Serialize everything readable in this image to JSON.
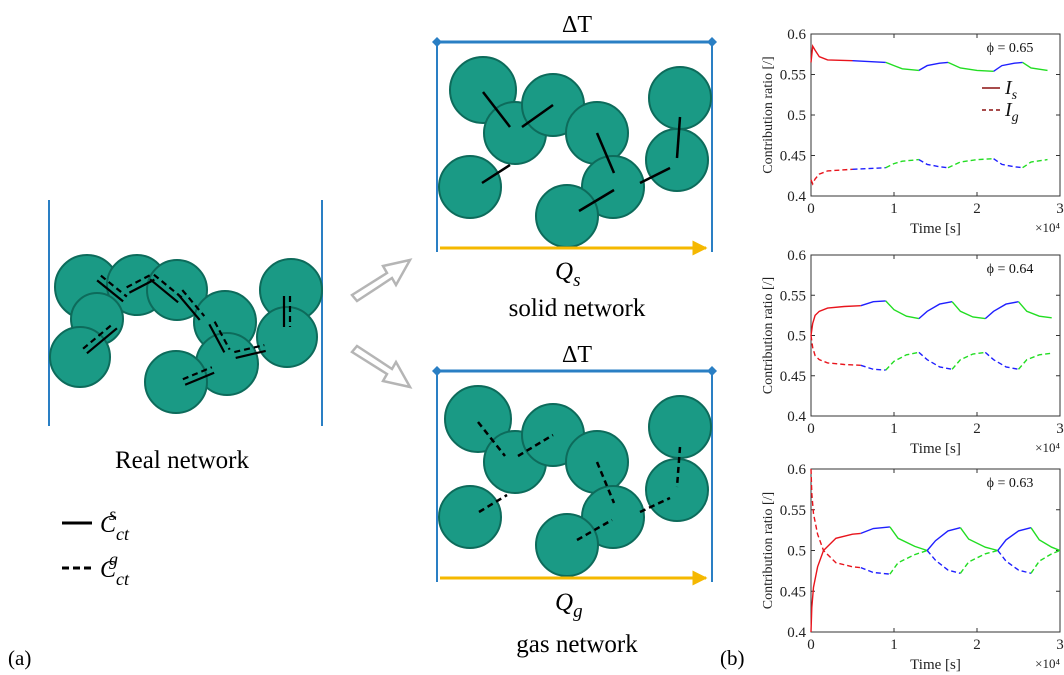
{
  "panel_labels": {
    "a": "(a)",
    "b": "(b)"
  },
  "left": {
    "caption": "Real network",
    "legend": [
      {
        "style": "solid",
        "label": "C",
        "sub": "ct",
        "sup": "s"
      },
      {
        "style": "dashed",
        "label": "C",
        "sub": "ct",
        "sup": "g"
      }
    ]
  },
  "solid_network": {
    "top_label": "ΔT",
    "flux_symbol": "Q",
    "flux_sub": "s",
    "caption": "solid network"
  },
  "gas_network": {
    "top_label": "ΔT",
    "flux_symbol": "Q",
    "flux_sub": "g",
    "caption": "gas network"
  },
  "colors": {
    "particle_fill": "#1a9a85",
    "particle_edge": "#0d6b5b",
    "wall": "#2a7fc4",
    "heat_arrow": "#f5b800",
    "open_arrow": "#b5b5b5",
    "series_red": "#e8141c",
    "series_blue": "#1f1fff",
    "series_green": "#22dd22"
  },
  "chart_data": [
    {
      "type": "line",
      "annotation": "ϕ = 0.65",
      "ylabel": "Contribution ratio [/]",
      "xlabel": "Time [s]",
      "x_multiplier": "×10⁴",
      "xlim": [
        0,
        3
      ],
      "ylim": [
        0.4,
        0.6
      ],
      "xticks": [
        "0",
        "1",
        "2",
        "3"
      ],
      "yticks": [
        "0.4",
        "0.45",
        "0.5",
        "0.55",
        "0.6"
      ],
      "legend": [
        {
          "symbol": "I",
          "sub": "s",
          "style": "solid"
        },
        {
          "symbol": "I",
          "sub": "g",
          "style": "dashed"
        }
      ],
      "series": [
        {
          "style": "solid",
          "points": [
            [
              0,
              0.565
            ],
            [
              0.02,
              0.585
            ],
            [
              0.05,
              0.58
            ],
            [
              0.1,
              0.572
            ],
            [
              0.2,
              0.568
            ],
            [
              0.5,
              0.567
            ]
          ]
        },
        {
          "style": "solid",
          "points": [
            [
              0.5,
              0.567
            ],
            [
              0.9,
              0.565
            ]
          ]
        },
        {
          "style": "solid",
          "points": [
            [
              0.9,
              0.565
            ],
            [
              1.0,
              0.561
            ],
            [
              1.1,
              0.557
            ],
            [
              1.3,
              0.555
            ]
          ]
        },
        {
          "style": "solid",
          "points": [
            [
              1.3,
              0.555
            ],
            [
              1.4,
              0.561
            ],
            [
              1.55,
              0.564
            ],
            [
              1.65,
              0.565
            ]
          ]
        },
        {
          "style": "solid",
          "points": [
            [
              1.65,
              0.565
            ],
            [
              1.8,
              0.558
            ],
            [
              2.0,
              0.555
            ],
            [
              2.2,
              0.554
            ]
          ]
        },
        {
          "style": "solid",
          "points": [
            [
              2.2,
              0.554
            ],
            [
              2.3,
              0.561
            ],
            [
              2.45,
              0.564
            ],
            [
              2.55,
              0.565
            ]
          ]
        },
        {
          "style": "solid",
          "points": [
            [
              2.55,
              0.565
            ],
            [
              2.65,
              0.558
            ],
            [
              2.85,
              0.555
            ]
          ]
        },
        {
          "style": "dashed",
          "points": [
            [
              0,
              0.42
            ],
            [
              0.02,
              0.415
            ],
            [
              0.05,
              0.421
            ],
            [
              0.1,
              0.427
            ],
            [
              0.2,
              0.431
            ],
            [
              0.5,
              0.433
            ]
          ]
        },
        {
          "style": "dashed",
          "points": [
            [
              0.5,
              0.433
            ],
            [
              0.9,
              0.435
            ]
          ]
        },
        {
          "style": "dashed",
          "points": [
            [
              0.9,
              0.435
            ],
            [
              1.0,
              0.44
            ],
            [
              1.1,
              0.443
            ],
            [
              1.3,
              0.445
            ]
          ]
        },
        {
          "style": "dashed",
          "points": [
            [
              1.3,
              0.445
            ],
            [
              1.4,
              0.439
            ],
            [
              1.55,
              0.436
            ],
            [
              1.65,
              0.435
            ]
          ]
        },
        {
          "style": "dashed",
          "points": [
            [
              1.65,
              0.435
            ],
            [
              1.8,
              0.442
            ],
            [
              2.0,
              0.445
            ],
            [
              2.2,
              0.446
            ]
          ]
        },
        {
          "style": "dashed",
          "points": [
            [
              2.2,
              0.446
            ],
            [
              2.3,
              0.439
            ],
            [
              2.45,
              0.436
            ],
            [
              2.55,
              0.435
            ]
          ]
        },
        {
          "style": "dashed",
          "points": [
            [
              2.55,
              0.435
            ],
            [
              2.65,
              0.442
            ],
            [
              2.85,
              0.445
            ]
          ]
        }
      ]
    },
    {
      "type": "line",
      "annotation": "ϕ = 0.64",
      "ylabel": "Contribution ratio [/]",
      "xlabel": "Time [s]",
      "x_multiplier": "×10⁴",
      "xlim": [
        0,
        3
      ],
      "ylim": [
        0.4,
        0.6
      ],
      "xticks": [
        "0",
        "1",
        "2",
        "3"
      ],
      "yticks": [
        "0.4",
        "0.45",
        "0.5",
        "0.55",
        "0.6"
      ],
      "series": [
        {
          "style": "solid",
          "points": [
            [
              0,
              0.5
            ],
            [
              0.02,
              0.515
            ],
            [
              0.05,
              0.525
            ],
            [
              0.1,
              0.53
            ],
            [
              0.2,
              0.534
            ],
            [
              0.4,
              0.536
            ],
            [
              0.6,
              0.537
            ]
          ]
        },
        {
          "style": "solid",
          "points": [
            [
              0.6,
              0.537
            ],
            [
              0.75,
              0.542
            ],
            [
              0.9,
              0.543
            ]
          ]
        },
        {
          "style": "solid",
          "points": [
            [
              0.9,
              0.543
            ],
            [
              1.0,
              0.532
            ],
            [
              1.15,
              0.524
            ],
            [
              1.3,
              0.521
            ]
          ]
        },
        {
          "style": "solid",
          "points": [
            [
              1.3,
              0.521
            ],
            [
              1.4,
              0.53
            ],
            [
              1.55,
              0.539
            ],
            [
              1.7,
              0.542
            ]
          ]
        },
        {
          "style": "solid",
          "points": [
            [
              1.7,
              0.542
            ],
            [
              1.8,
              0.53
            ],
            [
              1.95,
              0.523
            ],
            [
              2.1,
              0.521
            ]
          ]
        },
        {
          "style": "solid",
          "points": [
            [
              2.1,
              0.521
            ],
            [
              2.2,
              0.53
            ],
            [
              2.35,
              0.539
            ],
            [
              2.5,
              0.542
            ]
          ]
        },
        {
          "style": "solid",
          "points": [
            [
              2.5,
              0.542
            ],
            [
              2.6,
              0.53
            ],
            [
              2.75,
              0.524
            ],
            [
              2.9,
              0.522
            ]
          ]
        },
        {
          "style": "dashed",
          "points": [
            [
              0,
              0.5
            ],
            [
              0.02,
              0.485
            ],
            [
              0.05,
              0.475
            ],
            [
              0.1,
              0.47
            ],
            [
              0.2,
              0.466
            ],
            [
              0.4,
              0.464
            ],
            [
              0.6,
              0.463
            ]
          ]
        },
        {
          "style": "dashed",
          "points": [
            [
              0.6,
              0.463
            ],
            [
              0.75,
              0.458
            ],
            [
              0.9,
              0.457
            ]
          ]
        },
        {
          "style": "dashed",
          "points": [
            [
              0.9,
              0.457
            ],
            [
              1.0,
              0.468
            ],
            [
              1.15,
              0.476
            ],
            [
              1.3,
              0.479
            ]
          ]
        },
        {
          "style": "dashed",
          "points": [
            [
              1.3,
              0.479
            ],
            [
              1.4,
              0.47
            ],
            [
              1.55,
              0.461
            ],
            [
              1.7,
              0.458
            ]
          ]
        },
        {
          "style": "dashed",
          "points": [
            [
              1.7,
              0.458
            ],
            [
              1.8,
              0.47
            ],
            [
              1.95,
              0.477
            ],
            [
              2.1,
              0.479
            ]
          ]
        },
        {
          "style": "dashed",
          "points": [
            [
              2.1,
              0.479
            ],
            [
              2.2,
              0.47
            ],
            [
              2.35,
              0.461
            ],
            [
              2.5,
              0.458
            ]
          ]
        },
        {
          "style": "dashed",
          "points": [
            [
              2.5,
              0.458
            ],
            [
              2.6,
              0.47
            ],
            [
              2.75,
              0.476
            ],
            [
              2.9,
              0.478
            ]
          ]
        }
      ]
    },
    {
      "type": "line",
      "annotation": "ϕ = 0.63",
      "ylabel": "Contribution ratio [/]",
      "xlabel": "Time [s]",
      "x_multiplier": "×10⁴",
      "xlim": [
        0,
        3
      ],
      "ylim": [
        0.4,
        0.6
      ],
      "xticks": [
        "0",
        "1",
        "2",
        "3"
      ],
      "yticks": [
        "0.4",
        "0.45",
        "0.5",
        "0.55",
        "0.6"
      ],
      "series": [
        {
          "style": "solid",
          "points": [
            [
              0,
              0.4
            ],
            [
              0.01,
              0.43
            ],
            [
              0.03,
              0.455
            ],
            [
              0.08,
              0.48
            ],
            [
              0.15,
              0.5
            ],
            [
              0.3,
              0.515
            ],
            [
              0.5,
              0.52
            ],
            [
              0.6,
              0.521
            ]
          ]
        },
        {
          "style": "solid",
          "points": [
            [
              0.6,
              0.521
            ],
            [
              0.75,
              0.527
            ],
            [
              0.95,
              0.529
            ]
          ]
        },
        {
          "style": "solid",
          "points": [
            [
              0.95,
              0.529
            ],
            [
              1.05,
              0.515
            ],
            [
              1.25,
              0.505
            ],
            [
              1.4,
              0.5
            ]
          ]
        },
        {
          "style": "solid",
          "points": [
            [
              1.4,
              0.5
            ],
            [
              1.5,
              0.512
            ],
            [
              1.65,
              0.524
            ],
            [
              1.8,
              0.528
            ]
          ]
        },
        {
          "style": "solid",
          "points": [
            [
              1.8,
              0.528
            ],
            [
              1.9,
              0.514
            ],
            [
              2.1,
              0.504
            ],
            [
              2.25,
              0.5
            ]
          ]
        },
        {
          "style": "solid",
          "points": [
            [
              2.25,
              0.5
            ],
            [
              2.35,
              0.513
            ],
            [
              2.5,
              0.524
            ],
            [
              2.65,
              0.528
            ]
          ]
        },
        {
          "style": "solid",
          "points": [
            [
              2.65,
              0.528
            ],
            [
              2.75,
              0.513
            ],
            [
              2.9,
              0.504
            ],
            [
              3.0,
              0.5
            ]
          ]
        },
        {
          "style": "dashed",
          "points": [
            [
              0,
              0.6
            ],
            [
              0.01,
              0.57
            ],
            [
              0.03,
              0.545
            ],
            [
              0.08,
              0.52
            ],
            [
              0.15,
              0.5
            ],
            [
              0.3,
              0.485
            ],
            [
              0.5,
              0.48
            ],
            [
              0.6,
              0.479
            ]
          ]
        },
        {
          "style": "dashed",
          "points": [
            [
              0.6,
              0.479
            ],
            [
              0.75,
              0.473
            ],
            [
              0.95,
              0.471
            ]
          ]
        },
        {
          "style": "dashed",
          "points": [
            [
              0.95,
              0.471
            ],
            [
              1.05,
              0.485
            ],
            [
              1.25,
              0.495
            ],
            [
              1.4,
              0.5
            ]
          ]
        },
        {
          "style": "dashed",
          "points": [
            [
              1.4,
              0.5
            ],
            [
              1.5,
              0.488
            ],
            [
              1.65,
              0.476
            ],
            [
              1.8,
              0.472
            ]
          ]
        },
        {
          "style": "dashed",
          "points": [
            [
              1.8,
              0.472
            ],
            [
              1.9,
              0.486
            ],
            [
              2.1,
              0.496
            ],
            [
              2.25,
              0.5
            ]
          ]
        },
        {
          "style": "dashed",
          "points": [
            [
              2.25,
              0.5
            ],
            [
              2.35,
              0.487
            ],
            [
              2.5,
              0.476
            ],
            [
              2.65,
              0.472
            ]
          ]
        },
        {
          "style": "dashed",
          "points": [
            [
              2.65,
              0.472
            ],
            [
              2.75,
              0.487
            ],
            [
              2.9,
              0.496
            ],
            [
              3.0,
              0.5
            ]
          ]
        }
      ]
    }
  ]
}
